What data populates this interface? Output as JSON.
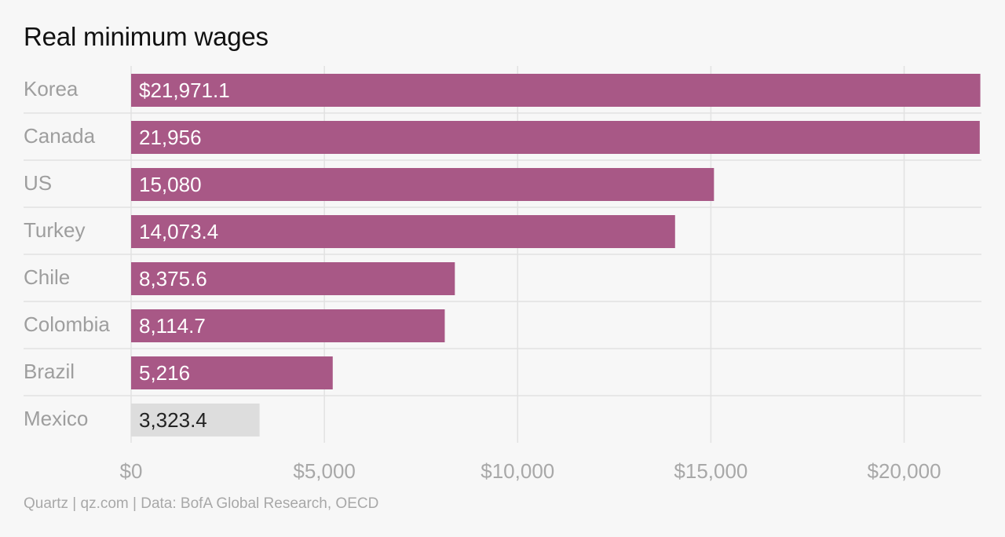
{
  "chart_data": {
    "type": "bar",
    "orientation": "horizontal",
    "title": "Real minimum wages",
    "xlabel": "",
    "ylabel": "",
    "categories": [
      "Korea",
      "Canada",
      "US",
      "Turkey",
      "Chile",
      "Colombia",
      "Brazil",
      "Mexico"
    ],
    "values": [
      21971.1,
      21956,
      15080,
      14073.4,
      8375.6,
      8114.7,
      5216,
      3323.4
    ],
    "value_labels": [
      "$21,971.1",
      "21,956",
      "15,080",
      "14,073.4",
      "8,375.6",
      "8,114.7",
      "5,216",
      "3,323.4"
    ],
    "highlighted_category": "Mexico",
    "xlim": [
      0,
      22000
    ],
    "x_ticks": [
      0,
      5000,
      10000,
      15000,
      20000
    ],
    "x_tick_labels": [
      "$0",
      "$5,000",
      "$10,000",
      "$15,000",
      "$20,000"
    ],
    "grid": true,
    "colors": {
      "bar": "#a85886",
      "highlight_bar": "#dddddd",
      "bar_label": "#ffffff",
      "highlight_label": "#222222",
      "category_label": "#9e9e9e",
      "tick_label": "#a8a8a8",
      "grid": "#e2e2e2",
      "background": "#f7f7f7"
    }
  },
  "source": "Quartz | qz.com | Data: BofA Global Research, OECD"
}
